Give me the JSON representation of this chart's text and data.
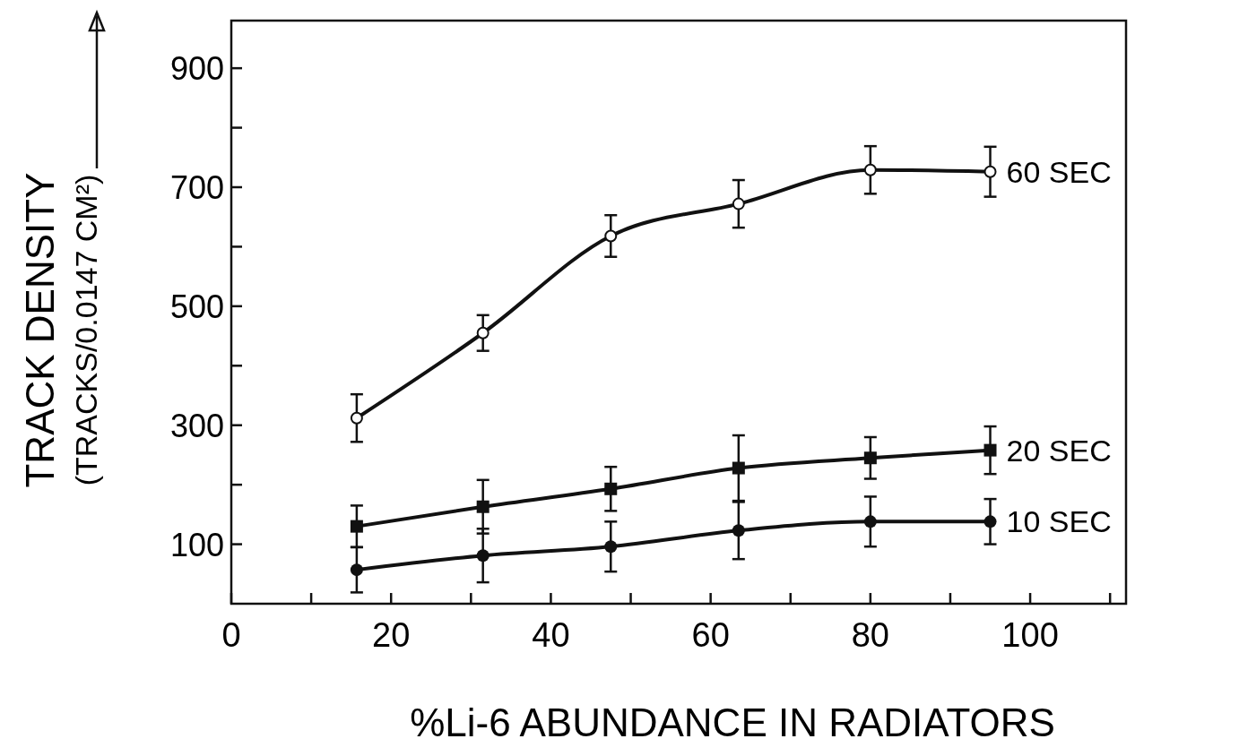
{
  "chart_data": {
    "type": "line",
    "xlabel": "%Li-6 ABUNDANCE IN RADIATORS",
    "ylabel": "TRACK DENSITY\n(TRACKS/0.0147 CM²)",
    "x": [
      15.7,
      31.5,
      47.5,
      63.5,
      80,
      95
    ],
    "xlim": [
      0,
      112
    ],
    "ylim": [
      0,
      980
    ],
    "xticks": [
      0,
      {
        "value": 10,
        "label": null
      },
      20,
      {
        "value": 30,
        "label": null
      },
      40,
      {
        "value": 50,
        "label": null
      },
      60,
      {
        "value": 70,
        "label": null
      },
      80,
      {
        "value": 90,
        "label": null
      },
      100,
      {
        "value": 110,
        "label": null
      }
    ],
    "yticks": [
      100,
      {
        "value": 200,
        "label": null
      },
      300,
      {
        "value": 400,
        "label": null
      },
      500,
      {
        "value": 600,
        "label": null
      },
      700,
      {
        "value": 800,
        "label": null
      },
      900
    ],
    "grid": false,
    "line_style": "solid",
    "series": [
      {
        "name": "60 SEC",
        "color": "#111111",
        "marker": "open-circle",
        "values": [
          312,
          455,
          618,
          672,
          729,
          726
        ],
        "errors": [
          40,
          30,
          35,
          40,
          40,
          42
        ]
      },
      {
        "name": "20 SEC",
        "color": "#111111",
        "marker": "square",
        "values": [
          130,
          163,
          193,
          228,
          245,
          258
        ],
        "errors": [
          35,
          45,
          37,
          55,
          35,
          40
        ]
      },
      {
        "name": "10 SEC",
        "color": "#111111",
        "marker": "circle",
        "values": [
          57,
          81,
          96,
          123,
          138,
          138
        ],
        "errors": [
          38,
          45,
          42,
          48,
          42,
          38
        ]
      }
    ]
  }
}
